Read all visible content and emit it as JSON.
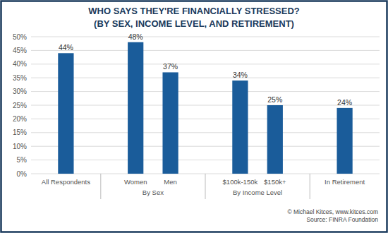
{
  "chart_data": {
    "type": "bar",
    "title": "WHO SAYS THEY'RE FINANCIALLY STRESSED?",
    "subtitle": "(BY SEX, INCOME LEVEL, AND RETIREMENT)",
    "categories": [
      "All Respondents",
      "Women",
      "Men",
      "$100k-150k",
      "$150k+",
      "In Retirement"
    ],
    "values": [
      44,
      48,
      37,
      34,
      25,
      24
    ],
    "value_labels": [
      "44%",
      "48%",
      "37%",
      "34%",
      "25%",
      "24%"
    ],
    "data_labels": true,
    "color": "#1a5c9a",
    "groups": [
      {
        "label": "By Sex",
        "categories": [
          "Women",
          "Men"
        ]
      },
      {
        "label": "By Income Level",
        "categories": [
          "$100k-150k",
          "$150k+"
        ]
      }
    ],
    "footer": [
      "© Michael Kitces, www.kitces.com",
      "Source: FINRA Foundation"
    ],
    "ylim": [
      0,
      50
    ],
    "yticks": [
      {
        "value": 0,
        "label": "0%"
      },
      {
        "value": 5,
        "label": "5%"
      },
      {
        "value": 10,
        "label": "10%"
      },
      {
        "value": 15,
        "label": "15%"
      },
      {
        "value": 20,
        "label": "20%"
      },
      {
        "value": 25,
        "label": "25%"
      },
      {
        "value": 30,
        "label": "30%"
      },
      {
        "value": 35,
        "label": "35%"
      },
      {
        "value": 40,
        "label": "40%"
      },
      {
        "value": 45,
        "label": "45%"
      },
      {
        "value": 50,
        "label": "50%"
      }
    ],
    "grid": true
  }
}
